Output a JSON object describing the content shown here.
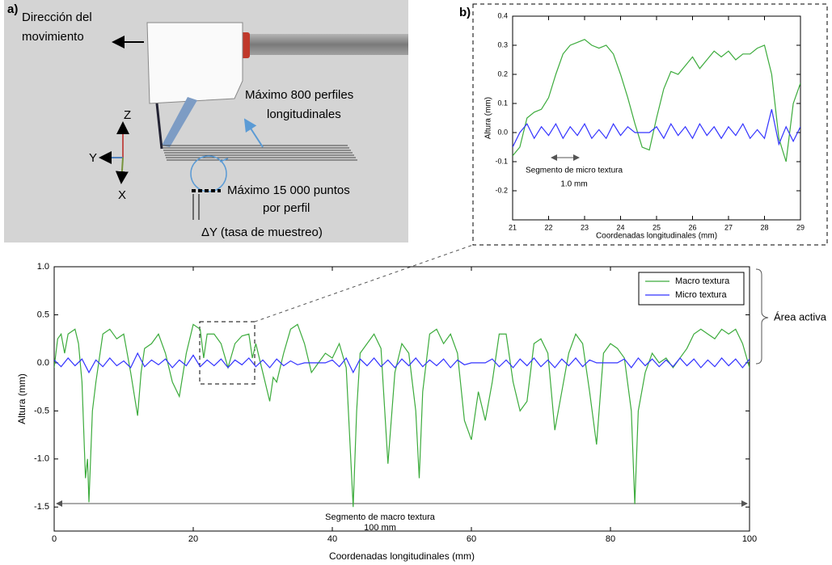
{
  "diagram": {
    "panel_label": "a)",
    "labels": [
      "Dirección del",
      "movimiento",
      "Máximo 800 perfiles",
      "longitudinales",
      "Z",
      "Y",
      "X",
      "Máximo 15 000 puntos",
      "por perfil",
      "ΔY (tasa de muestreo)"
    ]
  },
  "chart_data": [
    {
      "type": "line",
      "x_label": "Coordenadas longitudinales (mm)",
      "y_label": "Altura (mm)",
      "xlim": [
        0,
        100
      ],
      "ylim": [
        -1.75,
        1.0
      ],
      "xticks": [
        0,
        20,
        40,
        60,
        80,
        100
      ],
      "yticks": [
        -1.5,
        {
          "value": -1.0,
          "label": "-1.0"
        },
        -0.5,
        {
          "value": 0,
          "label": "0.0"
        },
        0.5,
        {
          "value": 1.0,
          "label": "1.0"
        }
      ],
      "legend": "upper right",
      "annotations": [
        "Segmento de macro textura",
        "100 mm",
        "Área activa"
      ],
      "series": [
        {
          "name": "Macro textura",
          "color": "#3cab3c",
          "x": [
            0,
            0.5,
            1,
            1.5,
            2,
            3,
            3.5,
            4,
            4.5,
            4.8,
            5,
            5.5,
            6,
            7,
            8,
            9,
            10,
            11,
            12,
            12.5,
            13,
            14,
            15,
            16,
            17,
            18,
            19,
            20,
            21,
            21.5,
            22,
            23,
            24,
            25,
            26,
            27,
            28,
            28.5,
            29,
            30,
            31,
            31.5,
            32,
            33,
            34,
            35,
            36,
            37,
            38,
            39,
            40,
            41,
            42,
            43,
            43.5,
            44,
            45,
            46,
            47,
            48,
            49,
            50,
            51,
            52,
            52.5,
            53,
            54,
            55,
            56,
            57,
            58,
            59,
            60,
            61,
            62,
            63,
            64,
            65,
            66,
            67,
            68,
            69,
            70,
            71,
            72,
            73,
            74,
            75,
            76,
            77,
            78,
            79,
            80,
            81,
            82,
            83,
            83.5,
            84,
            85,
            86,
            87,
            88,
            89,
            90,
            91,
            92,
            93,
            94,
            95,
            96,
            97,
            98,
            99,
            100
          ],
          "values": [
            -0.05,
            0.25,
            0.3,
            0.1,
            0.3,
            0.35,
            0.2,
            -0.2,
            -1.2,
            -1.0,
            -1.45,
            -0.5,
            -0.2,
            0.3,
            0.35,
            0.25,
            0.3,
            -0.1,
            -0.55,
            -0.1,
            0.15,
            0.2,
            0.3,
            0.1,
            -0.2,
            -0.35,
            0.1,
            0.4,
            0.35,
            0.05,
            0.3,
            0.3,
            0.2,
            -0.05,
            0.2,
            0.28,
            0.3,
            0.05,
            0.2,
            -0.1,
            -0.4,
            -0.15,
            -0.2,
            0.1,
            0.35,
            0.4,
            0.2,
            -0.1,
            0.0,
            0.1,
            0.05,
            0.2,
            -0.05,
            -1.5,
            -0.5,
            0.1,
            0.2,
            0.3,
            0.15,
            -1.05,
            -0.1,
            0.2,
            0.1,
            -0.5,
            -1.2,
            -0.3,
            0.3,
            0.35,
            0.2,
            0.3,
            0.1,
            -0.6,
            -0.8,
            -0.3,
            -0.6,
            -0.2,
            0.3,
            0.3,
            -0.2,
            -0.5,
            -0.4,
            0.2,
            0.25,
            0.1,
            -0.7,
            -0.3,
            0.1,
            0.3,
            0.2,
            -0.3,
            -0.85,
            0.1,
            0.2,
            0.15,
            0.05,
            -0.5,
            -1.47,
            -0.5,
            -0.1,
            0.1,
            0.0,
            0.05,
            -0.05,
            0.05,
            0.15,
            0.3,
            0.35,
            0.3,
            0.25,
            0.35,
            0.3,
            0.35,
            0.2,
            -0.05
          ]
        },
        {
          "name": "Micro textura",
          "color": "#3333ff",
          "x": [
            0,
            1,
            2,
            3,
            4,
            5,
            6,
            7,
            8,
            9,
            10,
            11,
            12,
            13,
            14,
            15,
            16,
            17,
            18,
            19,
            20,
            21,
            22,
            23,
            24,
            25,
            26,
            27,
            28,
            29,
            30,
            31,
            32,
            33,
            34,
            35,
            36,
            37,
            38,
            39,
            40,
            41,
            42,
            43,
            44,
            45,
            46,
            47,
            48,
            49,
            50,
            51,
            52,
            53,
            54,
            55,
            56,
            57,
            58,
            59,
            60,
            61,
            62,
            63,
            64,
            65,
            66,
            67,
            68,
            69,
            70,
            71,
            72,
            73,
            74,
            75,
            76,
            77,
            78,
            79,
            80,
            81,
            82,
            83,
            84,
            85,
            86,
            87,
            88,
            89,
            90,
            91,
            92,
            93,
            94,
            95,
            96,
            97,
            98,
            99,
            100
          ],
          "values": [
            0.03,
            -0.04,
            0.05,
            -0.03,
            0.04,
            -0.1,
            0.03,
            -0.04,
            0.05,
            -0.03,
            0.02,
            -0.05,
            0.1,
            -0.04,
            0.03,
            -0.02,
            0.04,
            -0.05,
            0.03,
            -0.03,
            0.08,
            -0.04,
            0.03,
            -0.03,
            0.04,
            -0.05,
            0.03,
            -0.02,
            0.05,
            -0.04,
            0.03,
            -0.05,
            0.04,
            -0.03,
            0.02,
            -0.02,
            0,
            0,
            0,
            0,
            0.03,
            -0.04,
            0.05,
            -0.1,
            0.04,
            -0.03,
            0.05,
            -0.04,
            0.03,
            -0.05,
            0.04,
            -0.03,
            0.05,
            -0.04,
            0.03,
            -0.03,
            0.04,
            -0.05,
            0.03,
            -0.02,
            0,
            0,
            0,
            0.04,
            -0.04,
            0.03,
            -0.05,
            0.04,
            -0.03,
            0.05,
            -0.04,
            0.03,
            -0.05,
            0.04,
            -0.03,
            0.05,
            -0.04,
            0.03,
            0,
            0,
            0,
            0,
            0.04,
            -0.05,
            0.05,
            -0.03,
            0.04,
            -0.04,
            0.03,
            -0.04,
            0.05,
            -0.03,
            0.04,
            -0.05,
            0.03,
            -0.04,
            0.05,
            -0.03,
            0.04,
            -0.05,
            0.04
          ]
        }
      ]
    },
    {
      "type": "line",
      "panel_label": "b)",
      "x_label": "Coordenadas longitudinales (mm)",
      "y_label": "Altura (mm)",
      "xlim": [
        21,
        29
      ],
      "ylim": [
        -0.3,
        0.4
      ],
      "xticks": [
        21,
        22,
        23,
        24,
        25,
        26,
        27,
        28,
        29
      ],
      "yticks": [
        -0.2,
        -0.1,
        {
          "value": 0,
          "label": "0.0"
        },
        0.1,
        0.2,
        0.3,
        0.4
      ],
      "annotations": [
        "Segmento de micro textura",
        "1.0 mm"
      ],
      "x": [
        21,
        21.2,
        21.4,
        21.6,
        21.8,
        22,
        22.2,
        22.4,
        22.6,
        22.8,
        23,
        23.2,
        23.4,
        23.6,
        23.8,
        24,
        24.2,
        24.4,
        24.6,
        24.8,
        25,
        25.2,
        25.4,
        25.6,
        25.8,
        26,
        26.2,
        26.4,
        26.6,
        26.8,
        27,
        27.2,
        27.4,
        27.6,
        27.8,
        28,
        28.2,
        28.4,
        28.6,
        28.8,
        29
      ],
      "series": [
        {
          "name": "Macro textura",
          "color": "#3cab3c",
          "values": [
            -0.08,
            -0.05,
            0.05,
            0.07,
            0.08,
            0.12,
            0.2,
            0.27,
            0.3,
            0.31,
            0.32,
            0.3,
            0.29,
            0.3,
            0.27,
            0.2,
            0.12,
            0.03,
            -0.05,
            -0.06,
            0.05,
            0.15,
            0.21,
            0.2,
            0.23,
            0.26,
            0.22,
            0.25,
            0.28,
            0.26,
            0.28,
            0.25,
            0.27,
            0.27,
            0.29,
            0.3,
            0.2,
            -0.02,
            -0.1,
            0.1,
            0.17
          ]
        },
        {
          "name": "Micro textura",
          "color": "#3333ff",
          "values": [
            -0.05,
            0.0,
            0.03,
            -0.02,
            0.02,
            -0.01,
            0.03,
            -0.02,
            0.02,
            -0.01,
            0.03,
            -0.02,
            0.01,
            -0.02,
            0.03,
            -0.01,
            0.02,
            0,
            0,
            0,
            0.02,
            -0.02,
            0.03,
            -0.01,
            0.02,
            -0.02,
            0.03,
            -0.01,
            0.02,
            -0.02,
            0.02,
            -0.01,
            0.03,
            -0.02,
            0.01,
            -0.02,
            0.08,
            -0.04,
            0.02,
            -0.03,
            0.02
          ]
        }
      ]
    }
  ]
}
